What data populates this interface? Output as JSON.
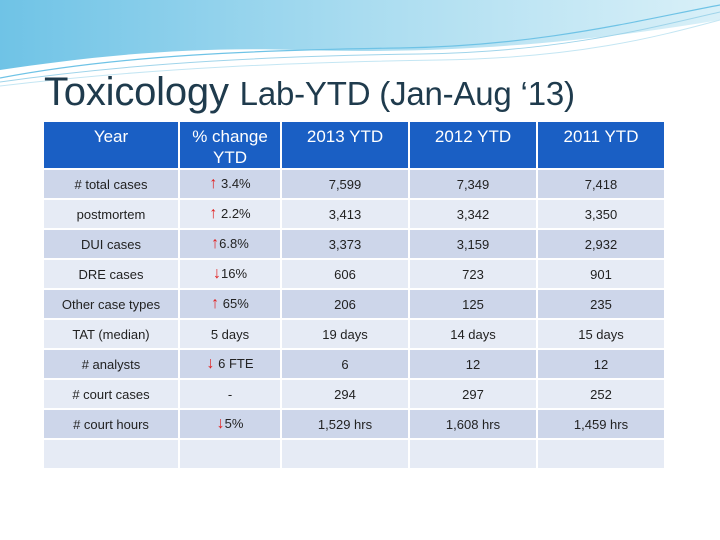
{
  "slide": {
    "title_main": "Toxicology ",
    "title_rest": "Lab-YTD (Jan-Aug ‘13)"
  },
  "table": {
    "headers": [
      "Year",
      "% change YTD",
      "2013 YTD",
      "2012 YTD",
      "2011 YTD"
    ],
    "rows": [
      {
        "label": "# total cases",
        "arrow": "↑",
        "change": " 3.4%",
        "y2013": "7,599",
        "y2012": "7,349",
        "y2011": "7,418"
      },
      {
        "label": "postmortem",
        "arrow": "↑",
        "change": " 2.2%",
        "y2013": "3,413",
        "y2012": "3,342",
        "y2011": "3,350"
      },
      {
        "label": "DUI cases",
        "arrow": "↑",
        "change": "6.8%",
        "y2013": "3,373",
        "y2012": "3,159",
        "y2011": "2,932"
      },
      {
        "label": "DRE cases",
        "arrow": "↓",
        "change": "16%",
        "y2013": "606",
        "y2012": "723",
        "y2011": "901"
      },
      {
        "label": "Other case types",
        "arrow": "↑",
        "change": " 65%",
        "y2013": "206",
        "y2012": "125",
        "y2011": "235"
      },
      {
        "label": "TAT (median)",
        "arrow": "",
        "change": "5 days",
        "y2013": "19 days",
        "y2012": "14 days",
        "y2011": "15 days"
      },
      {
        "label": "# analysts",
        "arrow": "↓",
        "change": " 6 FTE",
        "y2013": "6",
        "y2012": "12",
        "y2011": "12"
      },
      {
        "label": "# court cases",
        "arrow": "",
        "change": "-",
        "y2013": "294",
        "y2012": "297",
        "y2011": "252"
      },
      {
        "label": "# court hours",
        "arrow": "↓",
        "change": "5%",
        "y2013": "1,529 hrs",
        "y2012": "1,608 hrs",
        "y2011": "1,459 hrs"
      },
      {
        "label": "",
        "arrow": "",
        "change": "",
        "y2013": "",
        "y2012": "",
        "y2011": ""
      }
    ]
  }
}
